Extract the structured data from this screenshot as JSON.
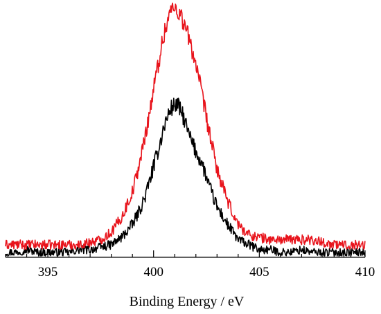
{
  "chart_data": {
    "type": "line",
    "title": "",
    "xlabel": "Binding Energy / eV",
    "ylabel": "",
    "xlim": [
      393,
      410
    ],
    "ylim": [
      0,
      1
    ],
    "x_ticks": [
      395,
      400,
      405,
      410
    ],
    "grid": false,
    "legend": "none",
    "series": [
      {
        "color": "#000000",
        "x": [
          393.0,
          393.5,
          394.0,
          394.5,
          395.0,
          395.5,
          396.0,
          396.5,
          397.0,
          397.5,
          398.0,
          398.5,
          399.0,
          399.3,
          399.6,
          399.9,
          400.2,
          400.5,
          400.8,
          401.1,
          401.4,
          401.7,
          402.0,
          402.3,
          402.6,
          403.0,
          403.5,
          404.0,
          404.5,
          405.0,
          405.5,
          406.0,
          406.5,
          407.0,
          407.5,
          408.0,
          408.5,
          409.0,
          409.5,
          410.0
        ],
        "values": [
          0.02,
          0.02,
          0.03,
          0.02,
          0.02,
          0.02,
          0.02,
          0.03,
          0.03,
          0.04,
          0.05,
          0.08,
          0.13,
          0.18,
          0.24,
          0.33,
          0.42,
          0.52,
          0.59,
          0.61,
          0.56,
          0.48,
          0.42,
          0.37,
          0.29,
          0.2,
          0.13,
          0.07,
          0.05,
          0.03,
          0.03,
          0.02,
          0.02,
          0.03,
          0.02,
          0.02,
          0.02,
          0.02,
          0.02,
          0.02
        ]
      },
      {
        "color": "#e8141c",
        "x": [
          393.0,
          393.5,
          394.0,
          394.5,
          395.0,
          395.5,
          396.0,
          396.5,
          397.0,
          397.5,
          398.0,
          398.5,
          399.0,
          399.3,
          399.6,
          399.9,
          400.2,
          400.5,
          400.8,
          401.1,
          401.4,
          401.7,
          402.0,
          402.3,
          402.6,
          403.0,
          403.5,
          404.0,
          404.5,
          405.0,
          405.5,
          406.0,
          406.5,
          407.0,
          407.5,
          408.0,
          408.5,
          409.0,
          409.5,
          410.0
        ],
        "values": [
          0.05,
          0.05,
          0.05,
          0.05,
          0.05,
          0.05,
          0.05,
          0.05,
          0.06,
          0.07,
          0.1,
          0.16,
          0.26,
          0.36,
          0.48,
          0.62,
          0.76,
          0.89,
          0.98,
          0.99,
          0.94,
          0.86,
          0.77,
          0.64,
          0.51,
          0.35,
          0.22,
          0.13,
          0.09,
          0.08,
          0.07,
          0.07,
          0.07,
          0.07,
          0.07,
          0.06,
          0.05,
          0.05,
          0.05,
          0.05
        ]
      }
    ]
  }
}
